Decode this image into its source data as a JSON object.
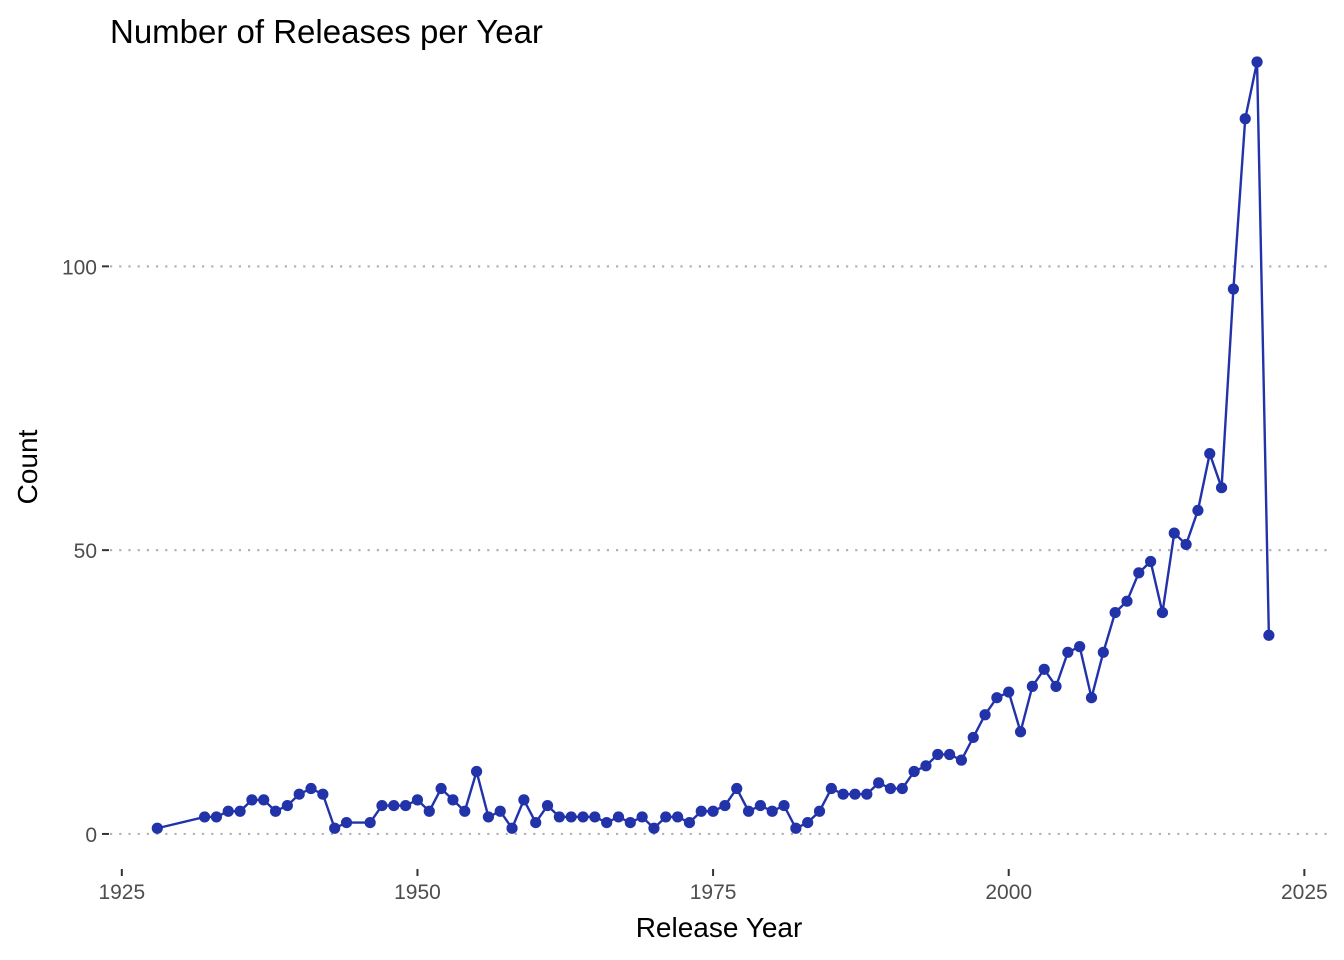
{
  "chart_data": {
    "type": "line",
    "title": "Number of Releases per Year",
    "xlabel": "Release Year",
    "ylabel": "Count",
    "xlim": [
      1924,
      2027
    ],
    "ylim": [
      -6,
      136
    ],
    "xticks": [
      1925,
      1950,
      1975,
      2000,
      2025
    ],
    "yticks": [
      0,
      50,
      100
    ],
    "grid": "horizontal major, dotted",
    "legend": "none",
    "colors": {
      "series": "#2233aa",
      "grid": "#b3b3b3",
      "tick_label": "#4d4d4d"
    },
    "series": [
      {
        "x": [
          1928,
          1932,
          1933,
          1934,
          1935,
          1936,
          1937,
          1938,
          1939,
          1940,
          1941,
          1942,
          1943,
          1944,
          1946,
          1947,
          1948,
          1949,
          1950,
          1951,
          1952,
          1953,
          1954,
          1955,
          1956,
          1957,
          1958,
          1959,
          1960,
          1961,
          1962,
          1963,
          1964,
          1965,
          1966,
          1967,
          1968,
          1969,
          1970,
          1971,
          1972,
          1973,
          1974,
          1975,
          1976,
          1977,
          1978,
          1979,
          1980,
          1981,
          1982,
          1983,
          1984,
          1985,
          1986,
          1987,
          1988,
          1989,
          1990,
          1991,
          1992,
          1993,
          1994,
          1995,
          1996,
          1997,
          1998,
          1999,
          2000,
          2001,
          2002,
          2003,
          2004,
          2005,
          2006,
          2007,
          2008,
          2009,
          2010,
          2011,
          2012,
          2013,
          2014,
          2015,
          2016,
          2017,
          2018,
          2019,
          2020,
          2021,
          2022
        ],
        "y": [
          1,
          3,
          3,
          4,
          4,
          6,
          6,
          4,
          5,
          7,
          8,
          7,
          1,
          2,
          2,
          5,
          5,
          5,
          6,
          4,
          8,
          6,
          4,
          11,
          3,
          4,
          1,
          6,
          2,
          5,
          3,
          3,
          3,
          3,
          2,
          3,
          2,
          3,
          1,
          3,
          3,
          2,
          4,
          4,
          5,
          8,
          4,
          5,
          4,
          5,
          1,
          2,
          4,
          8,
          7,
          7,
          7,
          9,
          8,
          8,
          11,
          12,
          14,
          14,
          13,
          17,
          21,
          24,
          25,
          18,
          26,
          29,
          26,
          32,
          33,
          24,
          32,
          39,
          41,
          46,
          48,
          39,
          53,
          51,
          57,
          67,
          61,
          96,
          126,
          136,
          35
        ]
      }
    ]
  }
}
